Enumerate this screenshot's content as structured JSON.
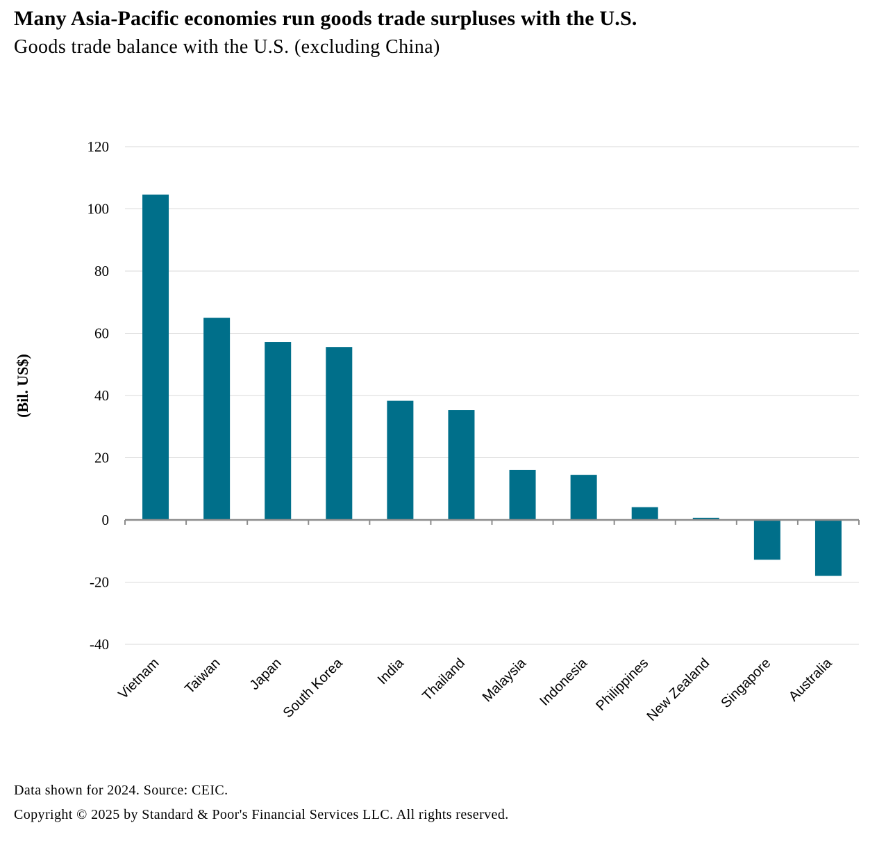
{
  "header": {
    "title": "Many Asia-Pacific economies run goods trade surpluses with the U.S.",
    "subtitle": "Goods trade balance with the U.S. (excluding China)"
  },
  "footer": {
    "source": "Data shown for 2024. Source: CEIC.",
    "copyright": "Copyright © 2025 by Standard & Poor's Financial Services LLC. All rights reserved."
  },
  "chart_data": {
    "type": "bar",
    "title": "Many Asia-Pacific economies run goods trade surpluses with the U.S.",
    "subtitle": "Goods trade balance with the U.S. (excluding China)",
    "xlabel": "",
    "ylabel": "(Bil. US$)",
    "categories": [
      "Vietnam",
      "Taiwan",
      "Japan",
      "South Korea",
      "India",
      "Thailand",
      "Malaysia",
      "Indonesia",
      "Philippines",
      "New Zealand",
      "Singapore",
      "Australia"
    ],
    "values": [
      104.6,
      65.0,
      57.2,
      55.6,
      38.3,
      35.3,
      16.1,
      14.5,
      4.1,
      0.7,
      -12.8,
      -18.0
    ],
    "ylim": [
      -40,
      120
    ],
    "yticks": [
      120,
      100,
      80,
      60,
      40,
      20,
      0,
      -20,
      -40
    ],
    "grid": true,
    "legend": "none",
    "bar_color": "#006f8a",
    "grid_color": "#d9d9d9",
    "axis_color": "#8c8c8c"
  }
}
